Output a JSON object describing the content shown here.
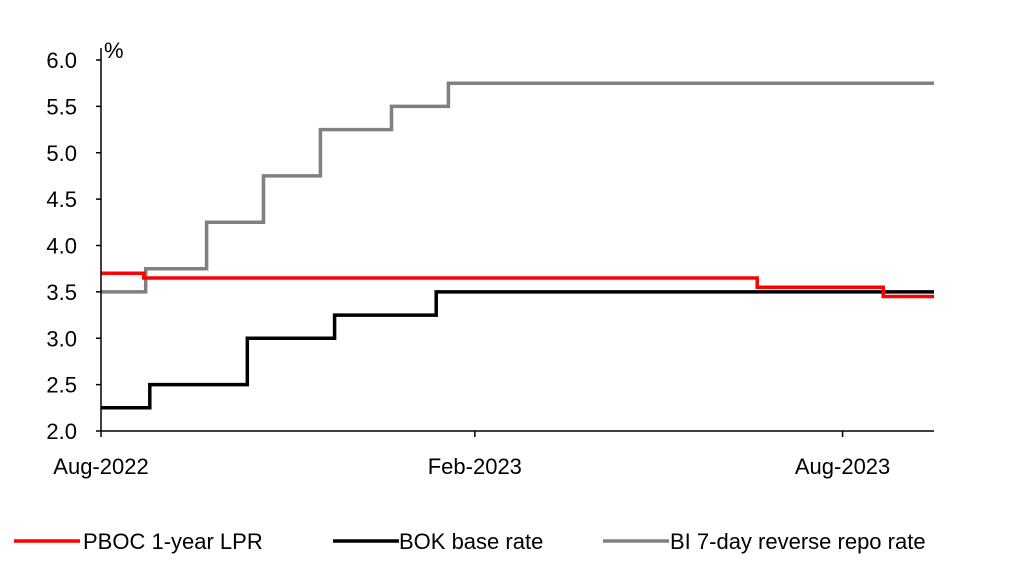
{
  "chart_data": {
    "type": "line",
    "title": "",
    "xlabel": "",
    "ylabel": "%",
    "ylim": [
      2.0,
      6.0
    ],
    "xlim": [
      "2022-08-01",
      "2023-09-15"
    ],
    "y_ticks": [
      "2.0",
      "2.5",
      "3.0",
      "3.5",
      "4.0",
      "4.5",
      "5.0",
      "5.5",
      "6.0"
    ],
    "x_ticks": [
      {
        "date": "2022-08-01",
        "label": "Aug-2022"
      },
      {
        "date": "2023-02-01",
        "label": "Feb-2023"
      },
      {
        "date": "2023-08-01",
        "label": "Aug-2023"
      }
    ],
    "grid": false,
    "legend_position": "bottom",
    "series": [
      {
        "name": "PBOC 1-year LPR",
        "color": "#ff0000",
        "step": true,
        "points": [
          {
            "x": "2022-08-01",
            "y": 3.7
          },
          {
            "x": "2022-08-22",
            "y": 3.65
          },
          {
            "x": "2023-06-20",
            "y": 3.55
          },
          {
            "x": "2023-08-21",
            "y": 3.45
          },
          {
            "x": "2023-09-15",
            "y": 3.45
          }
        ]
      },
      {
        "name": "BOK base rate",
        "color": "#000000",
        "step": true,
        "points": [
          {
            "x": "2022-08-01",
            "y": 2.25
          },
          {
            "x": "2022-08-25",
            "y": 2.5
          },
          {
            "x": "2022-10-12",
            "y": 3.0
          },
          {
            "x": "2022-11-24",
            "y": 3.25
          },
          {
            "x": "2023-01-13",
            "y": 3.5
          },
          {
            "x": "2023-09-15",
            "y": 3.5
          }
        ]
      },
      {
        "name": "BI 7-day reverse repo rate",
        "color": "#808080",
        "step": true,
        "points": [
          {
            "x": "2022-08-01",
            "y": 3.5
          },
          {
            "x": "2022-08-23",
            "y": 3.75
          },
          {
            "x": "2022-09-22",
            "y": 4.25
          },
          {
            "x": "2022-10-20",
            "y": 4.75
          },
          {
            "x": "2022-11-17",
            "y": 5.25
          },
          {
            "x": "2022-12-22",
            "y": 5.5
          },
          {
            "x": "2023-01-19",
            "y": 5.75
          },
          {
            "x": "2023-09-15",
            "y": 5.75
          }
        ]
      }
    ]
  }
}
